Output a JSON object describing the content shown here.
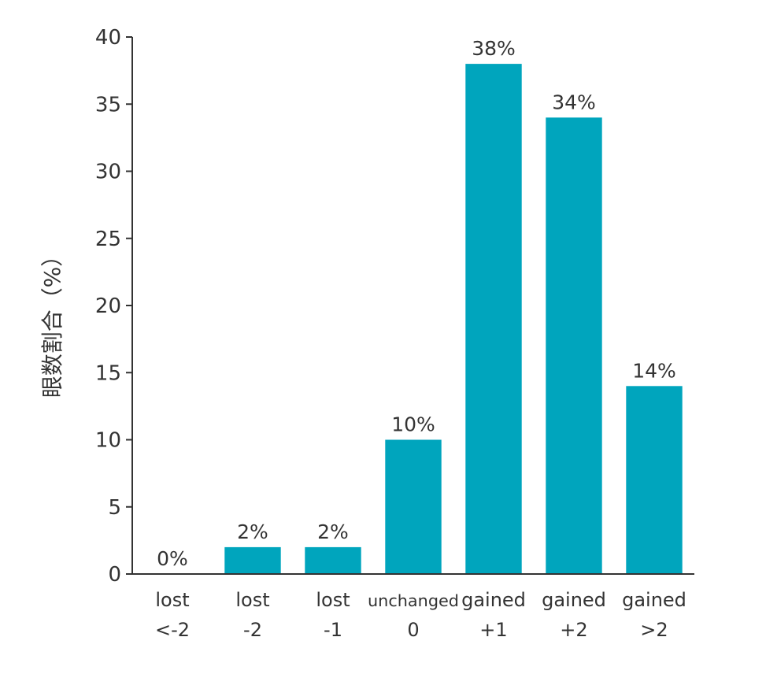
{
  "chart_data": {
    "type": "bar",
    "categories": [
      [
        "lost",
        "<-2"
      ],
      [
        "lost",
        "-2"
      ],
      [
        "lost",
        "-1"
      ],
      [
        "unchanged",
        "0"
      ],
      [
        "gained",
        "+1"
      ],
      [
        "gained",
        "+2"
      ],
      [
        "gained",
        ">2"
      ]
    ],
    "values": [
      0,
      2,
      2,
      10,
      38,
      34,
      14
    ],
    "data_labels": [
      "0%",
      "2%",
      "2%",
      "10%",
      "38%",
      "34%",
      "14%"
    ],
    "yticks": [
      "0",
      "5",
      "10",
      "15",
      "20",
      "25",
      "30",
      "35",
      "40"
    ],
    "ylabel": "眼数割合（%）",
    "ylim": [
      0,
      40
    ],
    "grid": false,
    "bar_color": "#00a5bd"
  }
}
